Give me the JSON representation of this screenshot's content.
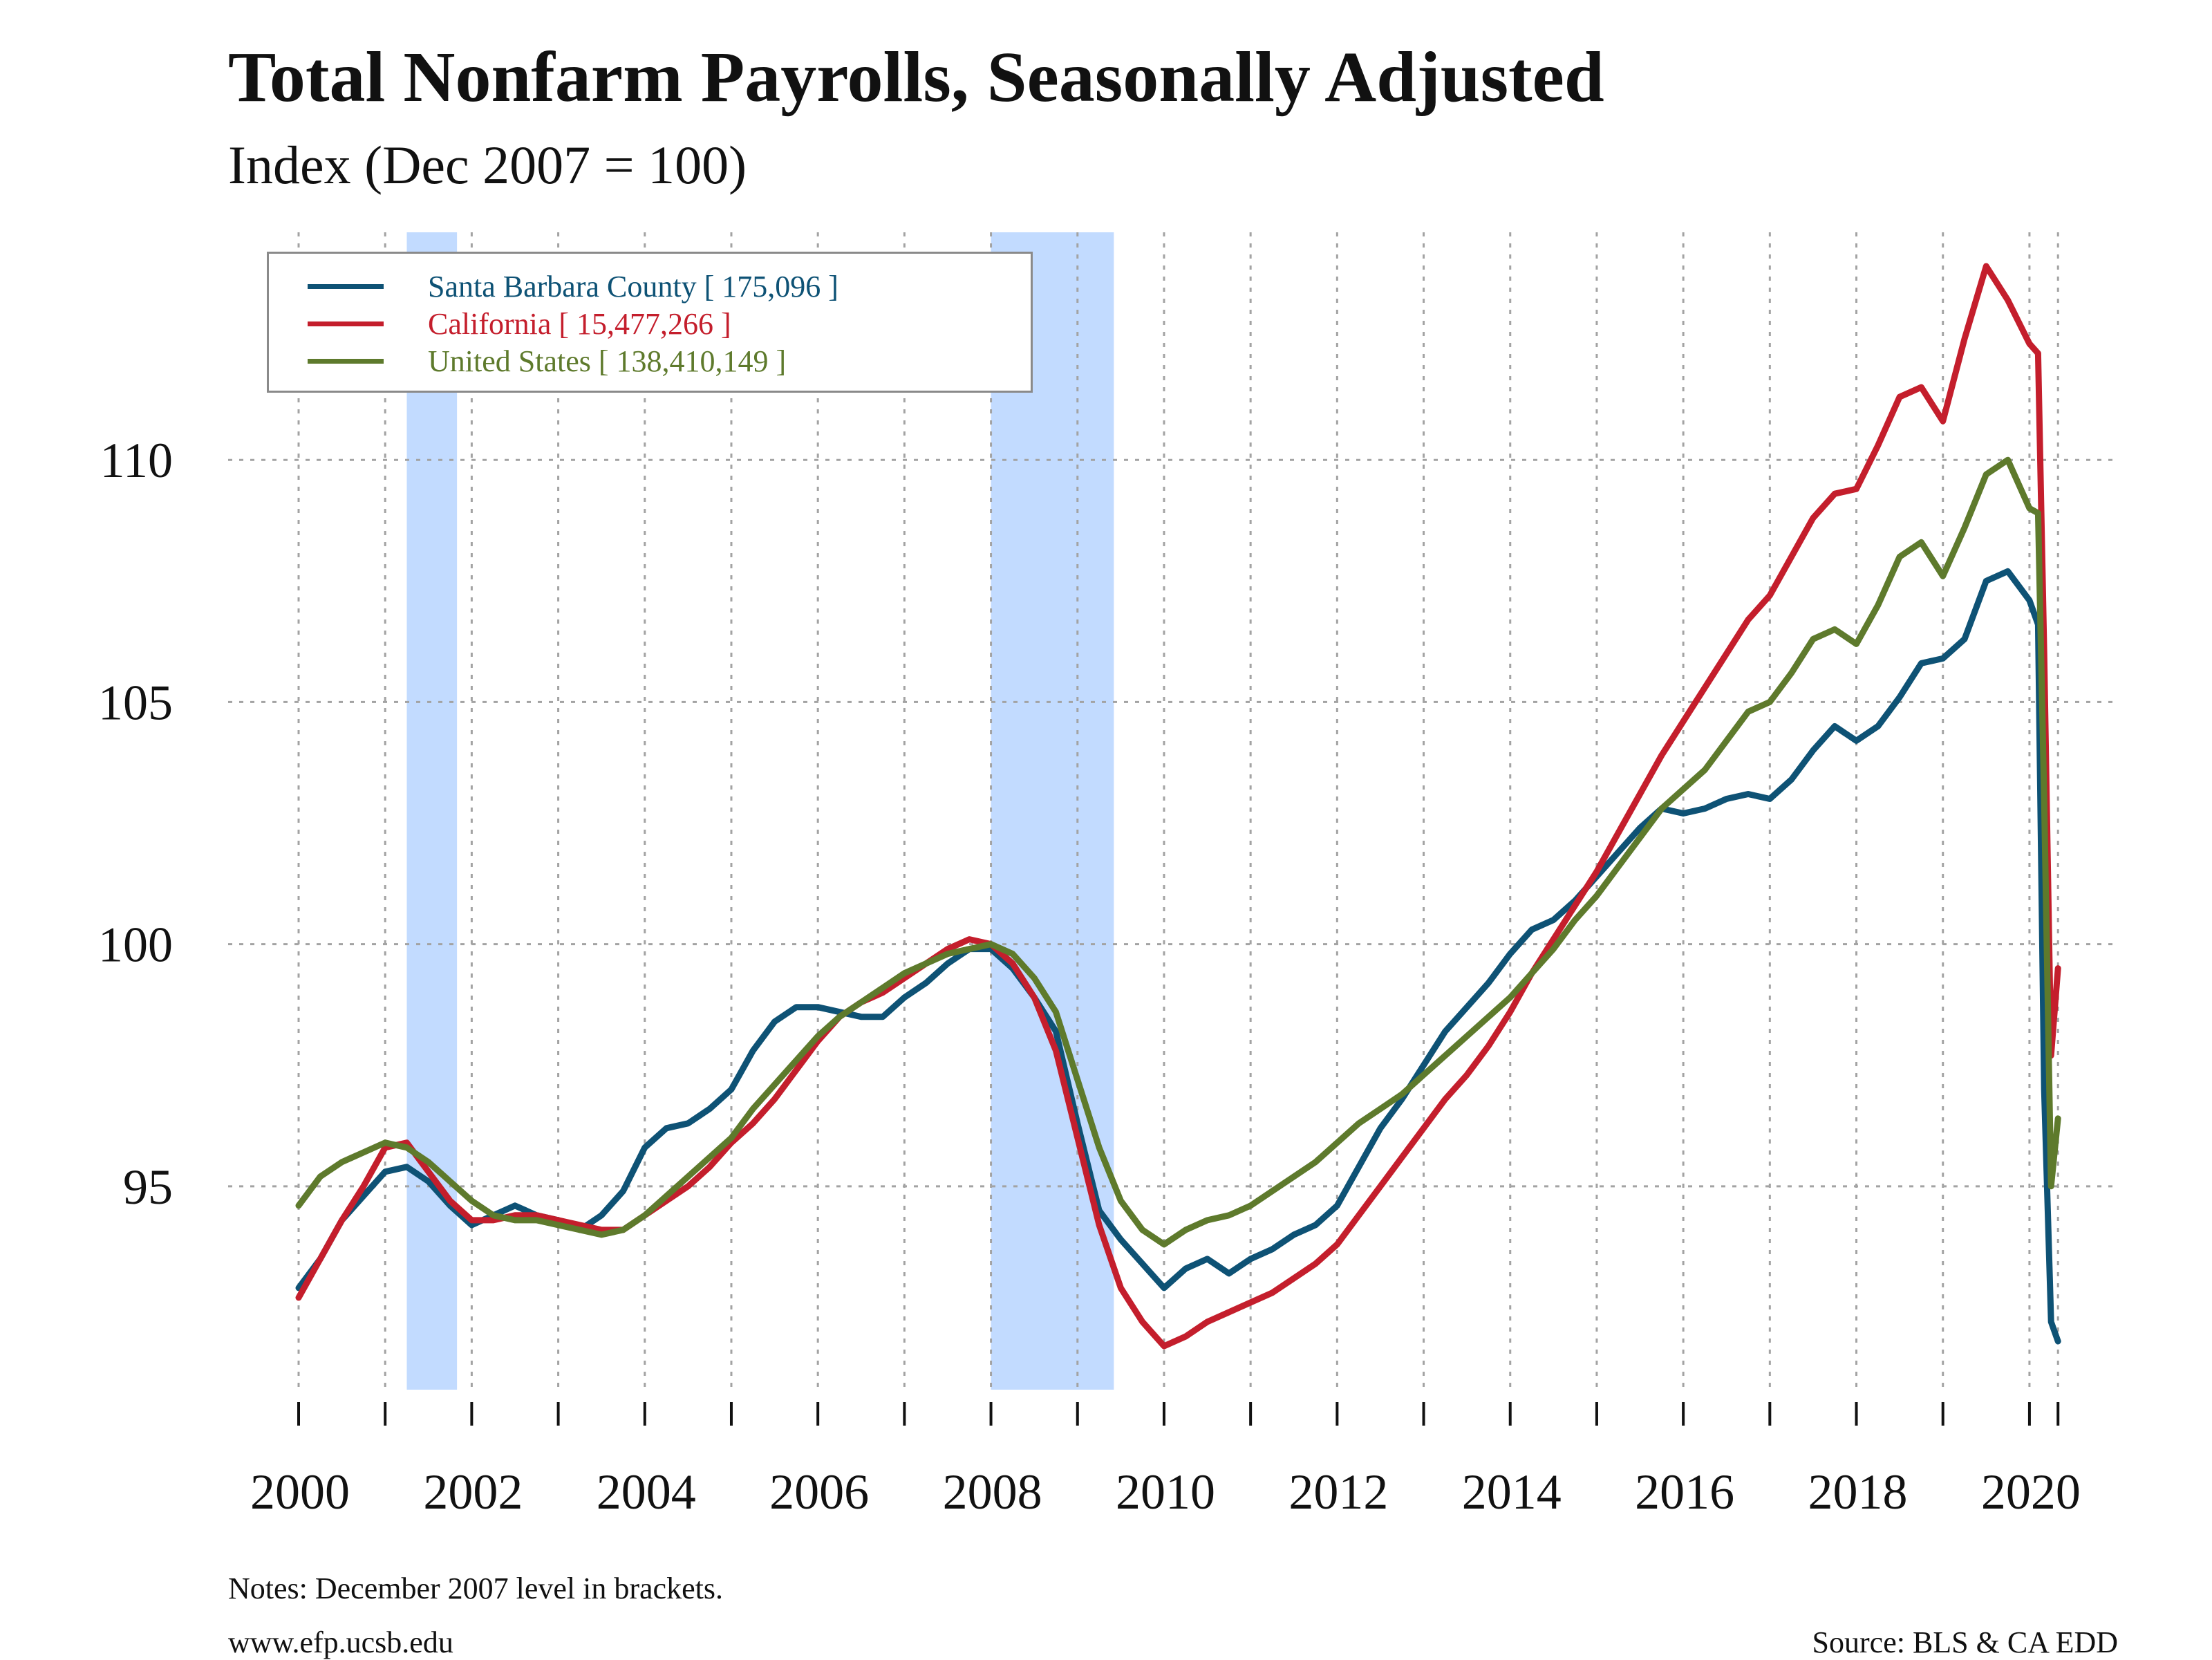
{
  "chart_data": {
    "type": "line",
    "title": "Total Nonfarm Payrolls, Seasonally Adjusted",
    "subtitle": "Index (Dec 2007 = 100)",
    "xlim": [
      2000,
      2020.4
    ],
    "ylim": [
      90.8,
      114.7
    ],
    "x_ticks": [
      2000,
      2002,
      2004,
      2006,
      2008,
      2010,
      2012,
      2014,
      2016,
      2018,
      2020
    ],
    "y_ticks": [
      95,
      100,
      105,
      110
    ],
    "grid": true,
    "legend_position": "top-left",
    "recessions": [
      [
        2001.25,
        2001.83
      ],
      [
        2008.0,
        2009.42
      ]
    ],
    "series": [
      {
        "name": "Santa Barbara County [ 175,096 ]",
        "color": "#0e5275",
        "points": [
          [
            2000.0,
            92.9
          ],
          [
            2000.25,
            93.5
          ],
          [
            2000.5,
            94.3
          ],
          [
            2000.75,
            94.8
          ],
          [
            2001.0,
            95.3
          ],
          [
            2001.25,
            95.4
          ],
          [
            2001.5,
            95.1
          ],
          [
            2001.75,
            94.6
          ],
          [
            2002.0,
            94.2
          ],
          [
            2002.25,
            94.4
          ],
          [
            2002.5,
            94.6
          ],
          [
            2002.75,
            94.4
          ],
          [
            2003.0,
            94.3
          ],
          [
            2003.25,
            94.1
          ],
          [
            2003.5,
            94.4
          ],
          [
            2003.75,
            94.9
          ],
          [
            2004.0,
            95.8
          ],
          [
            2004.25,
            96.2
          ],
          [
            2004.5,
            96.3
          ],
          [
            2004.75,
            96.6
          ],
          [
            2005.0,
            97.0
          ],
          [
            2005.25,
            97.8
          ],
          [
            2005.5,
            98.4
          ],
          [
            2005.75,
            98.7
          ],
          [
            2006.0,
            98.7
          ],
          [
            2006.25,
            98.6
          ],
          [
            2006.5,
            98.5
          ],
          [
            2006.75,
            98.5
          ],
          [
            2007.0,
            98.9
          ],
          [
            2007.25,
            99.2
          ],
          [
            2007.5,
            99.6
          ],
          [
            2007.75,
            99.9
          ],
          [
            2008.0,
            99.9
          ],
          [
            2008.25,
            99.5
          ],
          [
            2008.5,
            98.9
          ],
          [
            2008.75,
            98.2
          ],
          [
            2009.0,
            96.3
          ],
          [
            2009.25,
            94.5
          ],
          [
            2009.5,
            93.9
          ],
          [
            2009.75,
            93.4
          ],
          [
            2010.0,
            92.9
          ],
          [
            2010.25,
            93.3
          ],
          [
            2010.5,
            93.5
          ],
          [
            2010.75,
            93.2
          ],
          [
            2011.0,
            93.5
          ],
          [
            2011.25,
            93.7
          ],
          [
            2011.5,
            94.0
          ],
          [
            2011.75,
            94.2
          ],
          [
            2012.0,
            94.6
          ],
          [
            2012.25,
            95.4
          ],
          [
            2012.5,
            96.2
          ],
          [
            2012.75,
            96.8
          ],
          [
            2013.0,
            97.5
          ],
          [
            2013.25,
            98.2
          ],
          [
            2013.5,
            98.7
          ],
          [
            2013.75,
            99.2
          ],
          [
            2014.0,
            99.8
          ],
          [
            2014.25,
            100.3
          ],
          [
            2014.5,
            100.5
          ],
          [
            2014.75,
            100.9
          ],
          [
            2015.0,
            101.4
          ],
          [
            2015.25,
            101.9
          ],
          [
            2015.5,
            102.4
          ],
          [
            2015.75,
            102.8
          ],
          [
            2016.0,
            102.7
          ],
          [
            2016.25,
            102.8
          ],
          [
            2016.5,
            103.0
          ],
          [
            2016.75,
            103.1
          ],
          [
            2017.0,
            103.0
          ],
          [
            2017.25,
            103.4
          ],
          [
            2017.5,
            104.0
          ],
          [
            2017.75,
            104.5
          ],
          [
            2018.0,
            104.2
          ],
          [
            2018.25,
            104.5
          ],
          [
            2018.5,
            105.1
          ],
          [
            2018.75,
            105.8
          ],
          [
            2019.0,
            105.9
          ],
          [
            2019.25,
            106.3
          ],
          [
            2019.5,
            107.5
          ],
          [
            2019.75,
            107.7
          ],
          [
            2020.0,
            107.1
          ],
          [
            2020.1,
            106.6
          ],
          [
            2020.17,
            97.0
          ],
          [
            2020.25,
            92.2
          ],
          [
            2020.33,
            91.8
          ]
        ]
      },
      {
        "name": "California [ 15,477,266 ]",
        "color": "#c41e2c",
        "points": [
          [
            2000.0,
            92.7
          ],
          [
            2000.25,
            93.5
          ],
          [
            2000.5,
            94.3
          ],
          [
            2000.75,
            95.0
          ],
          [
            2001.0,
            95.8
          ],
          [
            2001.25,
            95.9
          ],
          [
            2001.5,
            95.3
          ],
          [
            2001.75,
            94.7
          ],
          [
            2002.0,
            94.3
          ],
          [
            2002.25,
            94.3
          ],
          [
            2002.5,
            94.4
          ],
          [
            2002.75,
            94.4
          ],
          [
            2003.0,
            94.3
          ],
          [
            2003.25,
            94.2
          ],
          [
            2003.5,
            94.1
          ],
          [
            2003.75,
            94.1
          ],
          [
            2004.0,
            94.4
          ],
          [
            2004.25,
            94.7
          ],
          [
            2004.5,
            95.0
          ],
          [
            2004.75,
            95.4
          ],
          [
            2005.0,
            95.9
          ],
          [
            2005.25,
            96.3
          ],
          [
            2005.5,
            96.8
          ],
          [
            2005.75,
            97.4
          ],
          [
            2006.0,
            98.0
          ],
          [
            2006.25,
            98.5
          ],
          [
            2006.5,
            98.8
          ],
          [
            2006.75,
            99.0
          ],
          [
            2007.0,
            99.3
          ],
          [
            2007.25,
            99.6
          ],
          [
            2007.5,
            99.9
          ],
          [
            2007.75,
            100.1
          ],
          [
            2008.0,
            100.0
          ],
          [
            2008.25,
            99.6
          ],
          [
            2008.5,
            98.9
          ],
          [
            2008.75,
            97.8
          ],
          [
            2009.0,
            96.0
          ],
          [
            2009.25,
            94.2
          ],
          [
            2009.5,
            92.9
          ],
          [
            2009.75,
            92.2
          ],
          [
            2010.0,
            91.7
          ],
          [
            2010.25,
            91.9
          ],
          [
            2010.5,
            92.2
          ],
          [
            2010.75,
            92.4
          ],
          [
            2011.0,
            92.6
          ],
          [
            2011.25,
            92.8
          ],
          [
            2011.5,
            93.1
          ],
          [
            2011.75,
            93.4
          ],
          [
            2012.0,
            93.8
          ],
          [
            2012.25,
            94.4
          ],
          [
            2012.5,
            95.0
          ],
          [
            2012.75,
            95.6
          ],
          [
            2013.0,
            96.2
          ],
          [
            2013.25,
            96.8
          ],
          [
            2013.5,
            97.3
          ],
          [
            2013.75,
            97.9
          ],
          [
            2014.0,
            98.6
          ],
          [
            2014.25,
            99.4
          ],
          [
            2014.5,
            100.1
          ],
          [
            2014.75,
            100.8
          ],
          [
            2015.0,
            101.5
          ],
          [
            2015.25,
            102.3
          ],
          [
            2015.5,
            103.1
          ],
          [
            2015.75,
            103.9
          ],
          [
            2016.0,
            104.6
          ],
          [
            2016.25,
            105.3
          ],
          [
            2016.5,
            106.0
          ],
          [
            2016.75,
            106.7
          ],
          [
            2017.0,
            107.2
          ],
          [
            2017.25,
            108.0
          ],
          [
            2017.5,
            108.8
          ],
          [
            2017.75,
            109.3
          ],
          [
            2018.0,
            109.4
          ],
          [
            2018.25,
            110.3
          ],
          [
            2018.5,
            111.3
          ],
          [
            2018.75,
            111.5
          ],
          [
            2019.0,
            110.8
          ],
          [
            2019.25,
            112.5
          ],
          [
            2019.5,
            114.0
          ],
          [
            2019.75,
            113.3
          ],
          [
            2020.0,
            112.4
          ],
          [
            2020.1,
            112.2
          ],
          [
            2020.17,
            106.0
          ],
          [
            2020.25,
            97.7
          ],
          [
            2020.33,
            99.5
          ]
        ]
      },
      {
        "name": "United States [ 138,410,149 ]",
        "color": "#5e7a2c",
        "points": [
          [
            2000.0,
            94.6
          ],
          [
            2000.25,
            95.2
          ],
          [
            2000.5,
            95.5
          ],
          [
            2000.75,
            95.7
          ],
          [
            2001.0,
            95.9
          ],
          [
            2001.25,
            95.8
          ],
          [
            2001.5,
            95.5
          ],
          [
            2001.75,
            95.1
          ],
          [
            2002.0,
            94.7
          ],
          [
            2002.25,
            94.4
          ],
          [
            2002.5,
            94.3
          ],
          [
            2002.75,
            94.3
          ],
          [
            2003.0,
            94.2
          ],
          [
            2003.25,
            94.1
          ],
          [
            2003.5,
            94.0
          ],
          [
            2003.75,
            94.1
          ],
          [
            2004.0,
            94.4
          ],
          [
            2004.25,
            94.8
          ],
          [
            2004.5,
            95.2
          ],
          [
            2004.75,
            95.6
          ],
          [
            2005.0,
            96.0
          ],
          [
            2005.25,
            96.6
          ],
          [
            2005.5,
            97.1
          ],
          [
            2005.75,
            97.6
          ],
          [
            2006.0,
            98.1
          ],
          [
            2006.25,
            98.5
          ],
          [
            2006.5,
            98.8
          ],
          [
            2006.75,
            99.1
          ],
          [
            2007.0,
            99.4
          ],
          [
            2007.25,
            99.6
          ],
          [
            2007.5,
            99.8
          ],
          [
            2007.75,
            99.9
          ],
          [
            2008.0,
            100.0
          ],
          [
            2008.25,
            99.8
          ],
          [
            2008.5,
            99.3
          ],
          [
            2008.75,
            98.6
          ],
          [
            2009.0,
            97.2
          ],
          [
            2009.25,
            95.8
          ],
          [
            2009.5,
            94.7
          ],
          [
            2009.75,
            94.1
          ],
          [
            2010.0,
            93.8
          ],
          [
            2010.25,
            94.1
          ],
          [
            2010.5,
            94.3
          ],
          [
            2010.75,
            94.4
          ],
          [
            2011.0,
            94.6
          ],
          [
            2011.25,
            94.9
          ],
          [
            2011.5,
            95.2
          ],
          [
            2011.75,
            95.5
          ],
          [
            2012.0,
            95.9
          ],
          [
            2012.25,
            96.3
          ],
          [
            2012.5,
            96.6
          ],
          [
            2012.75,
            96.9
          ],
          [
            2013.0,
            97.3
          ],
          [
            2013.25,
            97.7
          ],
          [
            2013.5,
            98.1
          ],
          [
            2013.75,
            98.5
          ],
          [
            2014.0,
            98.9
          ],
          [
            2014.25,
            99.4
          ],
          [
            2014.5,
            99.9
          ],
          [
            2014.75,
            100.5
          ],
          [
            2015.0,
            101.0
          ],
          [
            2015.25,
            101.6
          ],
          [
            2015.5,
            102.2
          ],
          [
            2015.75,
            102.8
          ],
          [
            2016.0,
            103.2
          ],
          [
            2016.25,
            103.6
          ],
          [
            2016.5,
            104.2
          ],
          [
            2016.75,
            104.8
          ],
          [
            2017.0,
            105.0
          ],
          [
            2017.25,
            105.6
          ],
          [
            2017.5,
            106.3
          ],
          [
            2017.75,
            106.5
          ],
          [
            2018.0,
            106.2
          ],
          [
            2018.25,
            107.0
          ],
          [
            2018.5,
            108.0
          ],
          [
            2018.75,
            108.3
          ],
          [
            2019.0,
            107.6
          ],
          [
            2019.25,
            108.6
          ],
          [
            2019.5,
            109.7
          ],
          [
            2019.75,
            110.0
          ],
          [
            2020.0,
            109.0
          ],
          [
            2020.1,
            108.9
          ],
          [
            2020.17,
            103.0
          ],
          [
            2020.25,
            95.0
          ],
          [
            2020.33,
            96.4
          ]
        ]
      }
    ]
  },
  "notes": "Notes: December 2007 level in brackets.",
  "website": "www.efp.ucsb.edu",
  "source": "Source: BLS & CA EDD",
  "colors": {
    "recession_band": "#c2dbff",
    "grid": "#a3a3a3"
  }
}
